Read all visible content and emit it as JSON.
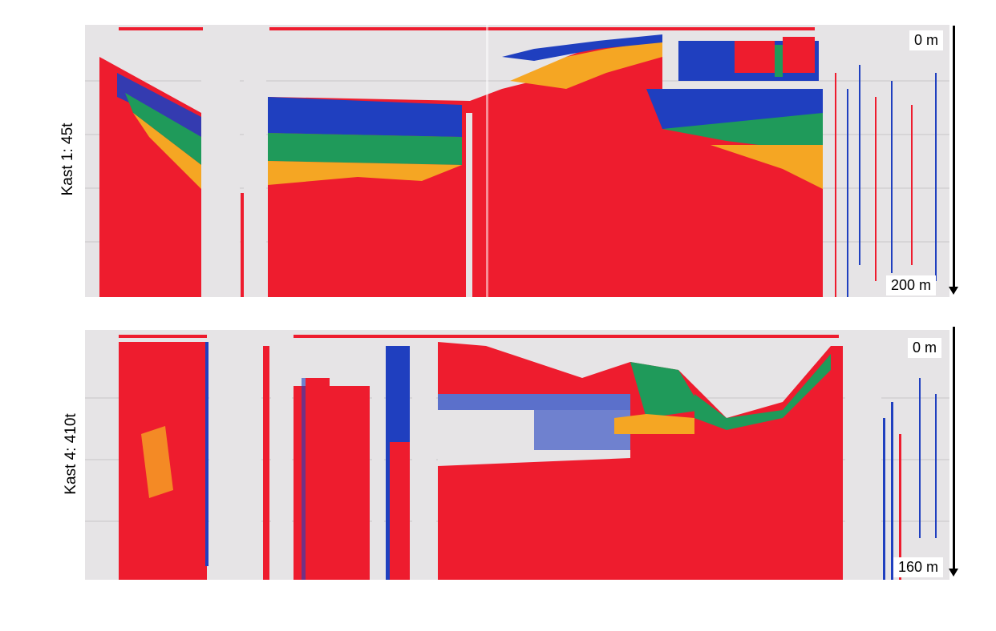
{
  "panels": [
    {
      "label": "Kast 1: 45t",
      "depth_top": "0 m",
      "depth_bottom": "200 m"
    },
    {
      "label": "Kast 4: 410t",
      "depth_top": "0 m",
      "depth_bottom": "160 m"
    }
  ],
  "colors": {
    "background": "#e6e4e6",
    "red": "#ee1c2e",
    "orange": "#f5a623",
    "green": "#1f9a5a",
    "blue": "#1f3fbf",
    "white": "#ffffff",
    "gridline": "#c8c6c8"
  }
}
